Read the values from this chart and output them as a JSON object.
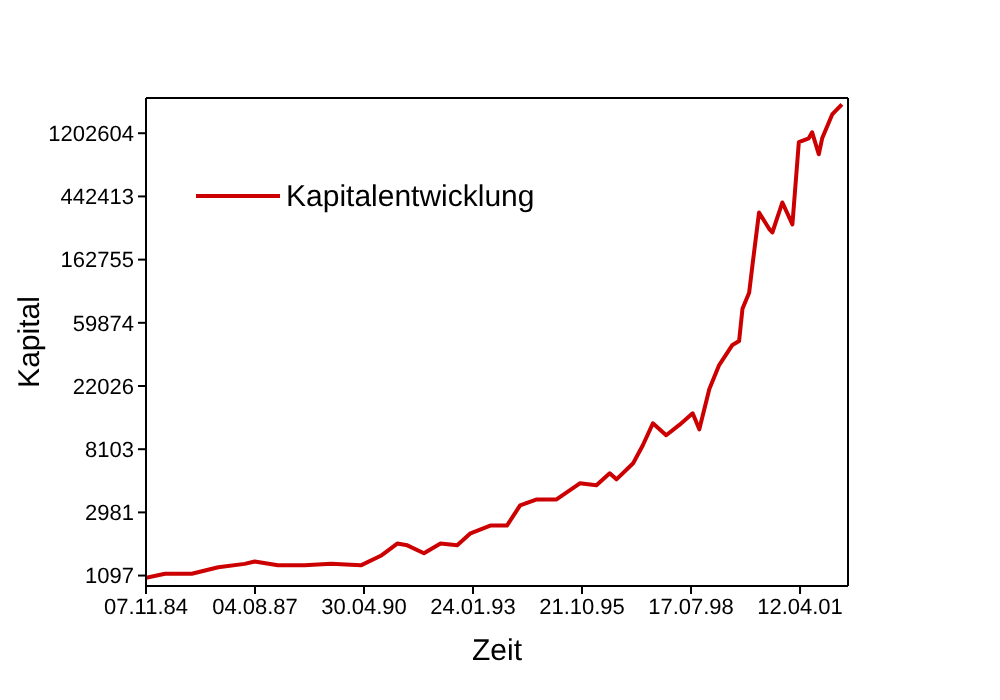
{
  "chart_data": {
    "type": "line",
    "xlabel": "Zeit",
    "ylabel": "Kapital",
    "log": "y",
    "legend": "top left",
    "marker": "none",
    "line_style": "solid",
    "xlim": [
      "1984-11-07",
      "2002-06-26"
    ],
    "xticks": [
      {
        "value": "1984-11-07",
        "label": "07.11.84"
      },
      {
        "value": "1987-08-04",
        "label": "04.08.87"
      },
      {
        "value": "1990-04-30",
        "label": "30.04.90"
      },
      {
        "value": "1993-01-24",
        "label": "24.01.93"
      },
      {
        "value": "1995-10-21",
        "label": "21.10.95"
      },
      {
        "value": "1998-07-17",
        "label": "17.07.98"
      },
      {
        "value": "2001-04-12",
        "label": "12.04.01"
      }
    ],
    "ylim": [
      930,
      2100000
    ],
    "yticks": [
      1097,
      2981,
      8103,
      22026,
      59874,
      162755,
      442413,
      1202604
    ],
    "x": [
      "1984-11-07",
      "1985-05",
      "1986-01",
      "1986-09",
      "1987-05",
      "1987-08",
      "1988-03",
      "1988-11",
      "1989-07",
      "1990-04",
      "1990-10",
      "1991-03",
      "1991-06",
      "1991-11",
      "1992-04",
      "1992-09",
      "1993-01",
      "1993-07",
      "1993-12",
      "1994-04",
      "1994-09",
      "1995-03",
      "1995-10",
      "1996-03",
      "1996-07",
      "1996-09",
      "1997-02",
      "1997-05",
      "1997-08",
      "1997-12",
      "1998-04",
      "1998-08",
      "1998-10",
      "1999-01",
      "1999-04",
      "1999-08",
      "1999-10",
      "1999-11",
      "2000-01",
      "2000-02",
      "2000-04",
      "2000-07",
      "2000-08",
      "2000-11",
      "2001-02",
      "2001-04",
      "2001-07",
      "2001-08",
      "2001-10",
      "2001-11",
      "2002-02",
      "2002-05"
    ],
    "series": [
      {
        "name": "Kapitalentwicklung",
        "color": "#cc0000",
        "values": [
          1060,
          1130,
          1130,
          1250,
          1320,
          1370,
          1290,
          1290,
          1320,
          1290,
          1500,
          1820,
          1770,
          1560,
          1820,
          1770,
          2140,
          2420,
          2420,
          3330,
          3660,
          3660,
          4720,
          4580,
          5540,
          5030,
          6490,
          8630,
          12200,
          10100,
          11900,
          14300,
          11100,
          21000,
          30700,
          42200,
          44900,
          74900,
          96500,
          150000,
          343000,
          266000,
          250000,
          402000,
          284000,
          1045000,
          1110000,
          1220000,
          862000,
          1110000,
          1620000,
          1900000
        ]
      }
    ]
  }
}
